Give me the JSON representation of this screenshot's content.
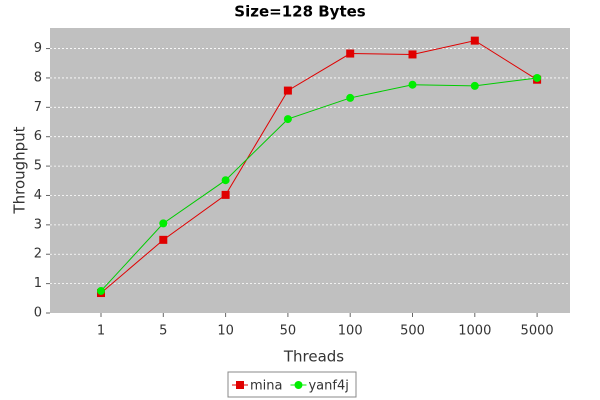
{
  "chart_data": {
    "type": "line",
    "title": "Size=128 Bytes",
    "x_label": "Threads",
    "y_label": "Throughput",
    "categories": [
      "1",
      "5",
      "10",
      "50",
      "100",
      "500",
      "1000",
      "5000"
    ],
    "series": [
      {
        "name": "mina",
        "color": "#e00000",
        "marker": "square",
        "values": [
          0.68,
          2.49,
          4.02,
          7.57,
          8.83,
          8.8,
          9.27,
          7.94
        ]
      },
      {
        "name": "yanf4j",
        "color": "#00ee00",
        "marker": "circle",
        "values": [
          0.75,
          3.05,
          4.52,
          6.6,
          7.32,
          7.77,
          7.73,
          8.0
        ]
      }
    ],
    "ylim": [
      0,
      9.7
    ],
    "yticks": [
      0,
      1,
      2,
      3,
      4,
      5,
      6,
      7,
      8,
      9
    ],
    "grid": true,
    "legend": "bottom"
  }
}
